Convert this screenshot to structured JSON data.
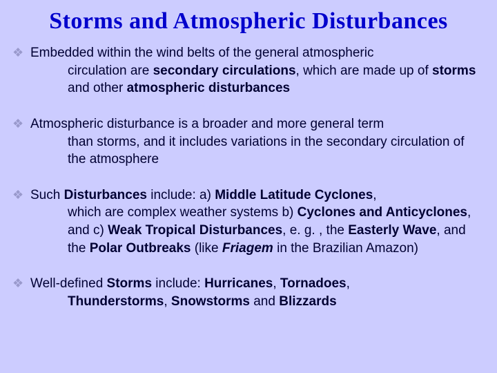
{
  "title": "Storms and Atmospheric Disturbances",
  "colors": {
    "background": "#ccccff",
    "title_color": "#0000cc",
    "text_color": "#000033",
    "bullet_color": "#9999cc"
  },
  "typography": {
    "title_font": "Times New Roman",
    "title_fontsize": 34,
    "body_font": "Arial",
    "body_fontsize": 19
  },
  "bullets": [
    {
      "first": "Embedded within the wind belts of the general atmospheric",
      "rest_html": "circulation are <b>secondary circulations</b>, which are made up of <b>storms</b> and other <b>atmospheric disturbances</b>"
    },
    {
      "first": "Atmospheric disturbance is a broader and more general term",
      "rest_html": "than storms, and it includes variations in the secondary circulation of the atmosphere"
    },
    {
      "first_html": "Such <b>Disturbances</b> include: a) <b>Middle Latitude Cyclones</b>,",
      "rest_html": "which are complex weather systems  b) <b>Cyclones and Anticyclones</b>, and c) <b>Weak Tropical Disturbances</b>, e. g. , the <b>Easterly Wave</b>, and the <b>Polar Outbreaks</b> (like <b><i>Friagem</i></b>  in the Brazilian Amazon)"
    },
    {
      "first_html": "Well-defined <b>Storms</b> include: <b>Hurricanes</b>, <b>Tornadoes</b>,",
      "rest_html": "<b>Thunderstorms</b>, <b>Snowstorms</b> and <b>Blizzards</b>"
    }
  ],
  "bullet_glyph": "❖"
}
